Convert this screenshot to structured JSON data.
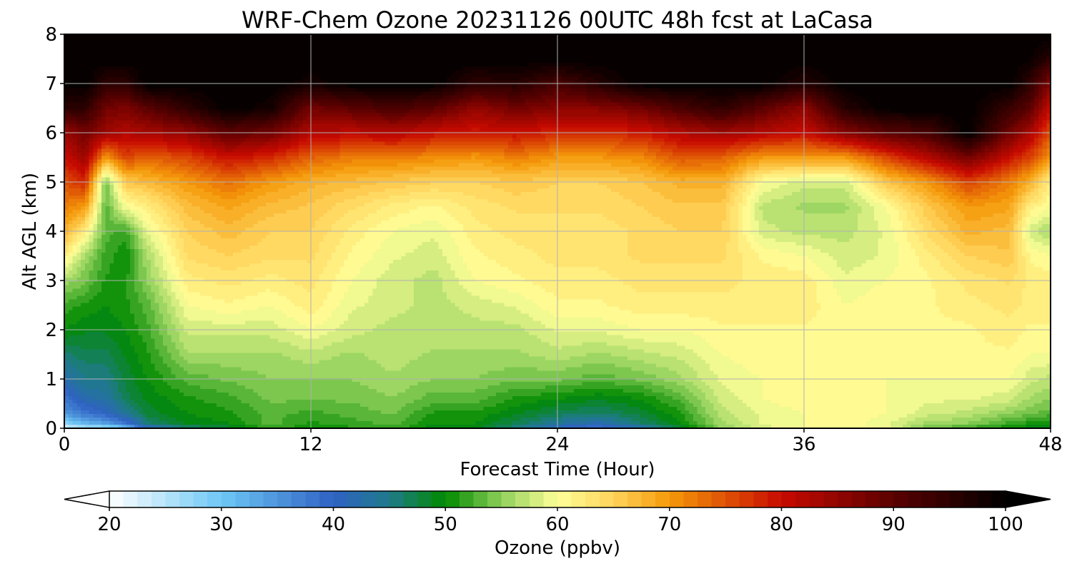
{
  "chart_data": {
    "type": "heatmap",
    "title": "WRF-Chem Ozone  20231126 00UTC 48h fcst at LaCasa",
    "xlabel": "Forecast Time (Hour)",
    "ylabel": "Alt AGL (km)",
    "xlim": [
      0,
      48
    ],
    "ylim": [
      0,
      8
    ],
    "x_ticks": [
      0,
      12,
      24,
      36,
      48
    ],
    "y_ticks": [
      0,
      1,
      2,
      3,
      4,
      5,
      6,
      7,
      8
    ],
    "grid": true,
    "colorbar": {
      "label": "Ozone  (ppbv)",
      "range": [
        20,
        100
      ],
      "ticks": [
        20,
        30,
        40,
        50,
        60,
        70,
        80,
        90,
        100
      ],
      "extend": "both",
      "stops": [
        {
          "v": 20,
          "c": "#ffffff"
        },
        {
          "v": 30,
          "c": "#6ec8f5"
        },
        {
          "v": 40,
          "c": "#2f62c4"
        },
        {
          "v": 45,
          "c": "#1f7a8a"
        },
        {
          "v": 50,
          "c": "#008a00"
        },
        {
          "v": 55,
          "c": "#8fd05a"
        },
        {
          "v": 60,
          "c": "#ffff99"
        },
        {
          "v": 65,
          "c": "#ffd35a"
        },
        {
          "v": 70,
          "c": "#f59a0a"
        },
        {
          "v": 80,
          "c": "#c80a00"
        },
        {
          "v": 90,
          "c": "#5a0000"
        },
        {
          "v": 100,
          "c": "#000000"
        }
      ]
    },
    "altitudes_km": [
      0,
      0.1,
      0.3,
      0.6,
      1,
      1.5,
      2,
      2.5,
      3,
      3.5,
      4,
      4.5,
      5,
      5.5,
      6,
      6.5,
      7,
      7.5,
      8
    ],
    "hours": [
      0,
      1,
      2,
      3,
      4,
      6,
      8,
      10,
      12,
      14,
      16,
      18,
      20,
      22,
      24,
      26,
      28,
      30,
      32,
      34,
      36,
      38,
      40,
      42,
      44,
      46,
      47,
      48
    ],
    "ozone_ppbv": [
      [
        22,
        28,
        35,
        38,
        42,
        46,
        50,
        52,
        56,
        62,
        68,
        72,
        75,
        80,
        84,
        95,
        100,
        100,
        100
      ],
      [
        25,
        32,
        38,
        42,
        45,
        47,
        49,
        51,
        54,
        56,
        62,
        70,
        78,
        84,
        88,
        95,
        100,
        100,
        100
      ],
      [
        26,
        34,
        40,
        43,
        45,
        47,
        49,
        50,
        51,
        52,
        53,
        53,
        54,
        70,
        84,
        88,
        95,
        100,
        100
      ],
      [
        30,
        38,
        44,
        47,
        48,
        49,
        50,
        51,
        51,
        50,
        52,
        60,
        66,
        76,
        82,
        87,
        95,
        100,
        100
      ],
      [
        40,
        46,
        48,
        49,
        50,
        51,
        52,
        53,
        55,
        56,
        59,
        62,
        67,
        74,
        83,
        90,
        100,
        100,
        100
      ],
      [
        46,
        49,
        50,
        51,
        53,
        56,
        58,
        60,
        62,
        64,
        65,
        67,
        70,
        76,
        85,
        95,
        100,
        100,
        100
      ],
      [
        48,
        50,
        51,
        52,
        54,
        56,
        58,
        61,
        63,
        65,
        67,
        69,
        73,
        80,
        90,
        100,
        100,
        100,
        100
      ],
      [
        52,
        53,
        53,
        54,
        55,
        56,
        58,
        60,
        62,
        64,
        65,
        67,
        70,
        78,
        88,
        98,
        100,
        100,
        100
      ],
      [
        50,
        51,
        52,
        54,
        55,
        57,
        60,
        62,
        63,
        64,
        65,
        66,
        68,
        74,
        82,
        88,
        98,
        100,
        100
      ],
      [
        51,
        52,
        53,
        54,
        55,
        56,
        58,
        59,
        60,
        61,
        62,
        64,
        67,
        72,
        81,
        90,
        100,
        100,
        100
      ],
      [
        52,
        53,
        54,
        55,
        56,
        57,
        57,
        58,
        58,
        59,
        60,
        62,
        66,
        72,
        82,
        92,
        100,
        100,
        100
      ],
      [
        49,
        50,
        51,
        53,
        55,
        56,
        57,
        57,
        57,
        58,
        59,
        61,
        65,
        71,
        80,
        90,
        100,
        100,
        100
      ],
      [
        49,
        50,
        51,
        53,
        55,
        56,
        57,
        58,
        60,
        61,
        62,
        63,
        65,
        70,
        79,
        85,
        95,
        100,
        100
      ],
      [
        45,
        47,
        49,
        51,
        54,
        56,
        57,
        59,
        61,
        62,
        63,
        64,
        66,
        72,
        80,
        88,
        96,
        100,
        100
      ],
      [
        40,
        44,
        47,
        50,
        54,
        57,
        59,
        61,
        62,
        63,
        63,
        64,
        65,
        70,
        78,
        86,
        92,
        100,
        100
      ],
      [
        38,
        42,
        46,
        49,
        53,
        56,
        59,
        61,
        62,
        63,
        63,
        64,
        65,
        70,
        78,
        86,
        96,
        100,
        100
      ],
      [
        42,
        46,
        48,
        50,
        54,
        57,
        60,
        62,
        63,
        64,
        64,
        65,
        66,
        71,
        79,
        88,
        100,
        100,
        100
      ],
      [
        48,
        50,
        51,
        53,
        56,
        58,
        60,
        62,
        63,
        64,
        65,
        66,
        68,
        75,
        82,
        92,
        100,
        100,
        100
      ],
      [
        55,
        56,
        57,
        58,
        59,
        60,
        61,
        62,
        63,
        64,
        65,
        66,
        68,
        74,
        84,
        95,
        100,
        100,
        100
      ],
      [
        58,
        59,
        59,
        60,
        60,
        61,
        61,
        62,
        62,
        61,
        58,
        57,
        60,
        70,
        82,
        90,
        100,
        100,
        100
      ],
      [
        60,
        60,
        60,
        61,
        61,
        61,
        61,
        62,
        62,
        60,
        57,
        56,
        58,
        70,
        80,
        85,
        96,
        100,
        100
      ],
      [
        61,
        61,
        61,
        61,
        61,
        61,
        61,
        60,
        59,
        58,
        57,
        56,
        58,
        70,
        86,
        96,
        100,
        100,
        100
      ],
      [
        59,
        59,
        60,
        60,
        60,
        61,
        61,
        61,
        60,
        59,
        59,
        60,
        66,
        76,
        90,
        100,
        100,
        100,
        100
      ],
      [
        54,
        56,
        58,
        59,
        60,
        61,
        61,
        61,
        61,
        62,
        64,
        66,
        70,
        82,
        92,
        100,
        100,
        100,
        100
      ],
      [
        52,
        55,
        57,
        59,
        60,
        61,
        61,
        62,
        63,
        65,
        68,
        70,
        76,
        88,
        100,
        100,
        100,
        100,
        100
      ],
      [
        50,
        52,
        55,
        58,
        60,
        61,
        62,
        63,
        64,
        66,
        67,
        69,
        72,
        80,
        88,
        94,
        100,
        100,
        100
      ],
      [
        49,
        51,
        54,
        56,
        58,
        60,
        61,
        62,
        62,
        61,
        58,
        62,
        68,
        76,
        83,
        90,
        95,
        99,
        100
      ],
      [
        48,
        50,
        53,
        55,
        57,
        60,
        61,
        62,
        62,
        60,
        56,
        60,
        62,
        70,
        75,
        80,
        86,
        95,
        100
      ]
    ]
  }
}
